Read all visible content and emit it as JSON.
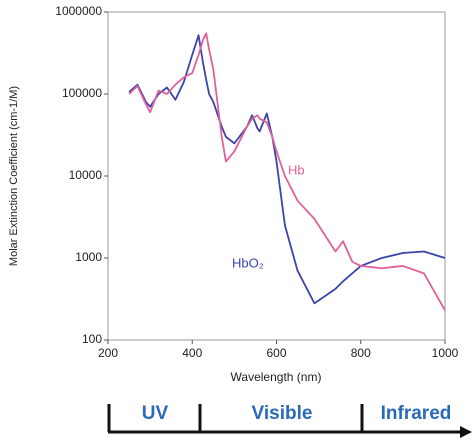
{
  "chart_data": {
    "type": "line",
    "ylabel": "Molar Extinction Coefficient (cm-1/M)",
    "xlabel": "Wavelength (nm)",
    "yscale": "log",
    "xlim": [
      200,
      1000
    ],
    "xticks": [
      200,
      400,
      600,
      800,
      1000
    ],
    "ylim": [
      100,
      1000000
    ],
    "yticks": [
      100,
      1000,
      10000,
      100000,
      1000000
    ],
    "x": [
      250,
      270,
      290,
      300,
      320,
      340,
      360,
      380,
      400,
      415,
      425,
      433,
      440,
      450,
      470,
      480,
      500,
      530,
      542,
      555,
      560,
      577,
      590,
      600,
      620,
      650,
      690,
      740,
      758,
      780,
      800,
      850,
      900,
      950,
      1000
    ],
    "series": [
      {
        "name": "HbO₂",
        "color": "#3a45a8",
        "values": [
          106000,
          130000,
          80000,
          70000,
          100000,
          120000,
          85000,
          140000,
          300000,
          520000,
          250000,
          150000,
          100000,
          80000,
          40000,
          30000,
          25000,
          40000,
          55000,
          38000,
          35000,
          58000,
          30000,
          15000,
          2500,
          700,
          280,
          420,
          520,
          650,
          800,
          1000,
          1150,
          1200,
          1000
        ]
      },
      {
        "name": "Hb",
        "color": "#e0609a",
        "values": [
          100000,
          125000,
          75000,
          60000,
          110000,
          100000,
          130000,
          160000,
          180000,
          300000,
          450000,
          550000,
          350000,
          200000,
          30000,
          15000,
          20000,
          40000,
          50000,
          55000,
          50000,
          45000,
          30000,
          20000,
          10000,
          5000,
          3000,
          1200,
          1600,
          900,
          800,
          750,
          800,
          650,
          230
        ]
      }
    ],
    "regions": [
      "UV",
      "Visible",
      "Infrared"
    ]
  }
}
